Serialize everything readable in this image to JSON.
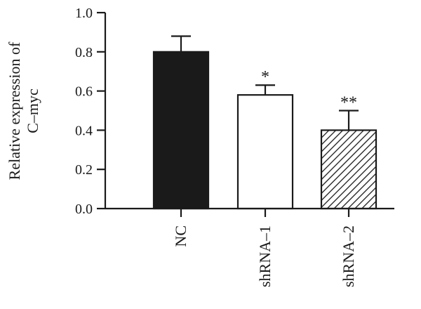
{
  "chart_data": {
    "type": "bar",
    "categories": [
      "NC",
      "shRNA-1",
      "shRNA-2"
    ],
    "values": [
      0.8,
      0.58,
      0.4
    ],
    "errors": [
      0.08,
      0.05,
      0.1
    ],
    "annotations": [
      "",
      "*",
      "**"
    ],
    "fills": [
      "solid-black",
      "white",
      "diagonal-hatch"
    ],
    "title": "",
    "xlabel": "",
    "ylabel_lines": [
      "Relative expression of",
      "C–myc"
    ],
    "ylim": [
      0,
      1.0
    ],
    "yticks": [
      0.0,
      0.2,
      0.4,
      0.6,
      0.8,
      1.0
    ],
    "ytick_labels": [
      "0.0",
      "0.2",
      "0.4",
      "0.6",
      "0.8",
      "1.0"
    ],
    "category_labels": [
      "NC",
      "shRNA–1",
      "shRNA–2"
    ],
    "grid": false,
    "legend": "none",
    "colors": {
      "ink": "#1a1a1a",
      "bar_dark": "#1a1a1a",
      "bar_light": "#ffffff"
    }
  }
}
